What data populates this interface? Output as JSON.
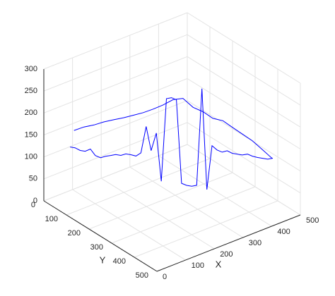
{
  "chart_data": {
    "type": "line3d",
    "xlabel": "X",
    "ylabel": "Y",
    "xlim": [
      0,
      500
    ],
    "ylim": [
      0,
      500
    ],
    "zlim": [
      0,
      300
    ],
    "xticks": [
      0,
      100,
      200,
      300,
      400,
      500
    ],
    "yticks": [
      0,
      100,
      200,
      300,
      400,
      500
    ],
    "zticks": [
      0,
      50,
      100,
      150,
      200,
      250,
      300
    ],
    "grid": true,
    "series": [
      {
        "color": "#0000ff",
        "x": [
          80,
          101,
          122,
          143,
          164,
          185,
          205,
          226,
          247,
          268,
          289,
          310,
          331,
          352,
          373,
          394,
          414,
          435,
          456,
          477,
          498
        ],
        "y": [
          32,
          49,
          67,
          84,
          101,
          119,
          136,
          153,
          170,
          188,
          205,
          222,
          240,
          257,
          274,
          292,
          309,
          326,
          343,
          361,
          378
        ],
        "z": [
          150,
          158,
          163,
          170,
          175,
          180,
          186,
          192,
          200,
          210,
          222,
          225,
          205,
          195,
          180,
          175,
          160,
          145,
          130,
          110,
          90
        ]
      },
      {
        "color": "#0000ff",
        "x": [
          60,
          71,
          82,
          93,
          104,
          115,
          126,
          137,
          148,
          159,
          170,
          181,
          192,
          203,
          214,
          225,
          236,
          247,
          258,
          269,
          280,
          291,
          302,
          313,
          324,
          335,
          346,
          357,
          368,
          379,
          390,
          401,
          412,
          423,
          434,
          445,
          456,
          467,
          478,
          489,
          500
        ],
        "y": [
          40,
          48,
          57,
          65,
          74,
          82,
          91,
          99,
          108,
          116,
          125,
          133,
          141,
          150,
          158,
          167,
          175,
          184,
          192,
          201,
          209,
          217,
          226,
          234,
          243,
          251,
          260,
          268,
          277,
          285,
          294,
          302,
          310,
          319,
          327,
          336,
          344,
          353,
          361,
          370,
          378
        ],
        "z": [
          120,
          118,
          112,
          110,
          115,
          100,
          95,
          98,
          100,
          102,
          100,
          103,
          101,
          98,
          105,
          165,
          110,
          150,
          40,
          228,
          230,
          225,
          35,
          30,
          28,
          30,
          250,
          20,
          120,
          110,
          105,
          108,
          102,
          100,
          98,
          100,
          95,
          92,
          90,
          88,
          90
        ]
      }
    ]
  }
}
